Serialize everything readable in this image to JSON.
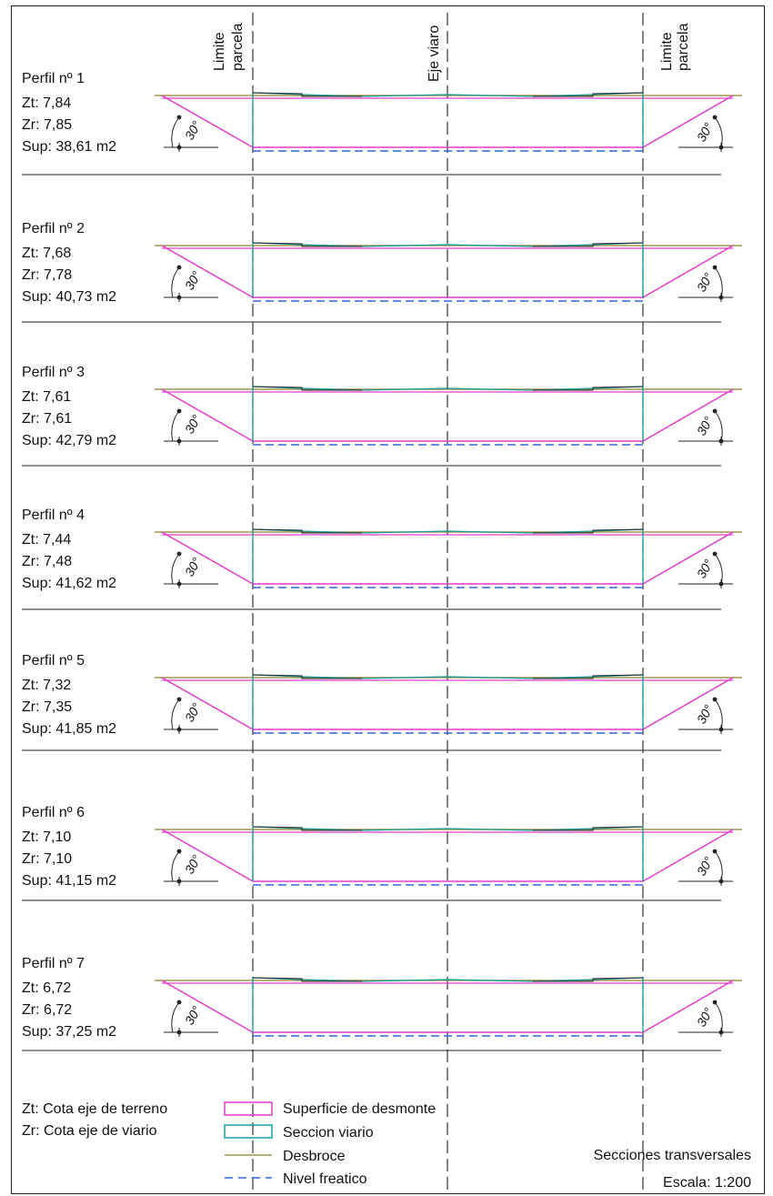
{
  "header_labels": {
    "left_limit": [
      "Limite",
      "parcela"
    ],
    "axis": "Eje viaro",
    "right_limit": [
      "Limite",
      "parcela"
    ]
  },
  "angle_label": "30°",
  "profiles": [
    {
      "title": "Perfil nº 1",
      "zt": "Zt: 7,84",
      "zr": "Zr: 7,85",
      "sup": "Sup: 38,61 m2"
    },
    {
      "title": "Perfil nº 2",
      "zt": "Zt: 7,68",
      "zr": "Zr: 7,78",
      "sup": "Sup: 40,73 m2"
    },
    {
      "title": "Perfil nº 3",
      "zt": "Zt: 7,61",
      "zr": "Zr: 7,61",
      "sup": "Sup: 42,79 m2"
    },
    {
      "title": "Perfil nº 4",
      "zt": "Zt: 7,44",
      "zr": "Zr: 7,48",
      "sup": "Sup: 41,62 m2"
    },
    {
      "title": "Perfil nº 5",
      "zt": "Zt: 7,32",
      "zr": "Zr: 7,35",
      "sup": "Sup: 41,85 m2"
    },
    {
      "title": "Perfil nº 6",
      "zt": "Zt: 7,10",
      "zr": "Zr: 7,10",
      "sup": "Sup: 41,15 m2"
    },
    {
      "title": "Perfil nº 7",
      "zt": "Zt: 6,72",
      "zr": "Zr: 6,72",
      "sup": "Sup: 37,25 m2"
    }
  ],
  "notes": {
    "zt": "Zt: Cota eje de terreno",
    "zr": "Zr: Cota eje de viario"
  },
  "legend": [
    {
      "key": "desmonte",
      "label": "Superficie de desmonte",
      "color": "#e23cc8"
    },
    {
      "key": "viario",
      "label": "Seccion viario",
      "color": "#159c98"
    },
    {
      "key": "desbroce",
      "label": "Desbroce",
      "color": "#a3944e"
    },
    {
      "key": "freatico",
      "label": "Nivel freatico",
      "color": "#3465d8"
    }
  ],
  "title_block": {
    "title": "Secciones transversales",
    "scale": "Escala: 1:200"
  }
}
